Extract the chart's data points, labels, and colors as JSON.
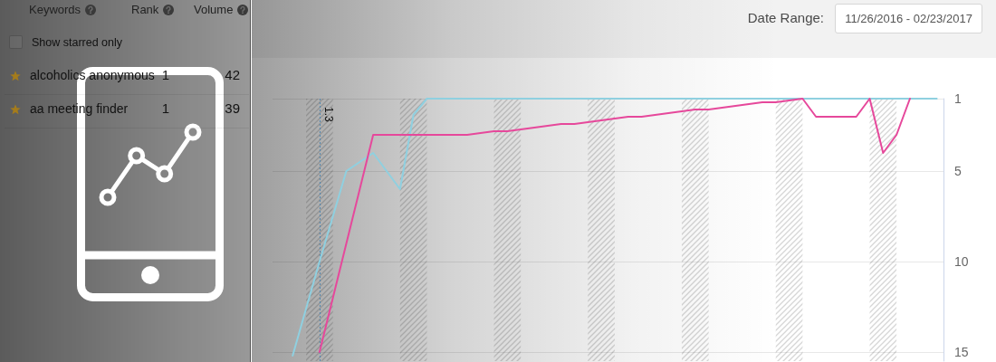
{
  "chart_data": [
    {
      "type": "other",
      "xlabel": "Keywords",
      "categories": [
        "alcoholics anonymous",
        "aa meeting finder"
      ],
      "series": [
        {
          "name": "Rank",
          "values": [
            1,
            1
          ]
        },
        {
          "name": "Volume",
          "values": [
            42,
            39
          ]
        }
      ],
      "data_labels": true,
      "annotations": [
        "Show starred only"
      ]
    },
    {
      "type": "line",
      "categories": [
        null,
        null,
        null,
        null,
        null,
        null,
        null,
        null,
        null,
        null,
        null,
        null,
        null,
        null,
        null,
        null,
        null,
        null,
        null,
        null,
        null,
        null,
        null,
        null,
        null,
        null,
        null,
        null,
        null,
        null,
        null,
        null,
        null,
        null,
        null,
        null,
        null,
        null,
        null,
        null,
        null,
        null,
        null,
        null,
        null,
        null,
        null,
        null,
        null,
        null
      ],
      "series": [
        {
          "color": "#8fd0e0",
          "values": [
            null,
            15.2,
            12.6,
            10,
            7.5,
            5,
            4.5,
            4,
            5,
            6,
            1.9,
            1,
            1,
            1,
            1,
            1,
            1,
            1,
            1,
            1,
            1,
            1,
            1,
            1,
            1,
            1,
            1,
            1,
            1,
            1,
            1,
            1,
            1,
            1,
            1,
            1,
            1,
            1,
            1,
            1,
            1,
            1,
            1,
            1,
            1,
            1,
            1,
            1,
            1,
            1
          ]
        },
        {
          "color": "#e6489b",
          "values": [
            null,
            null,
            null,
            15,
            12,
            9,
            6,
            3,
            3,
            3,
            3,
            3,
            3,
            3,
            3,
            2.9,
            2.8,
            2.8,
            2.7,
            2.6,
            2.5,
            2.4,
            2.4,
            2.3,
            2.2,
            2.1,
            2.0,
            2.0,
            1.9,
            1.8,
            1.7,
            1.6,
            1.6,
            1.5,
            1.4,
            1.3,
            1.2,
            1.2,
            1.1,
            1,
            2,
            2,
            2,
            2,
            1,
            4,
            3,
            1,
            null,
            null
          ]
        }
      ],
      "ylim": [
        15.5,
        1
      ],
      "yticks": [
        1,
        5,
        10,
        15
      ],
      "grid": "y",
      "tick_labels": "y",
      "marker": "none",
      "annotations": [
        "Date Range:",
        "11/26/2016 - 02/23/2017",
        "1.3"
      ]
    }
  ]
}
